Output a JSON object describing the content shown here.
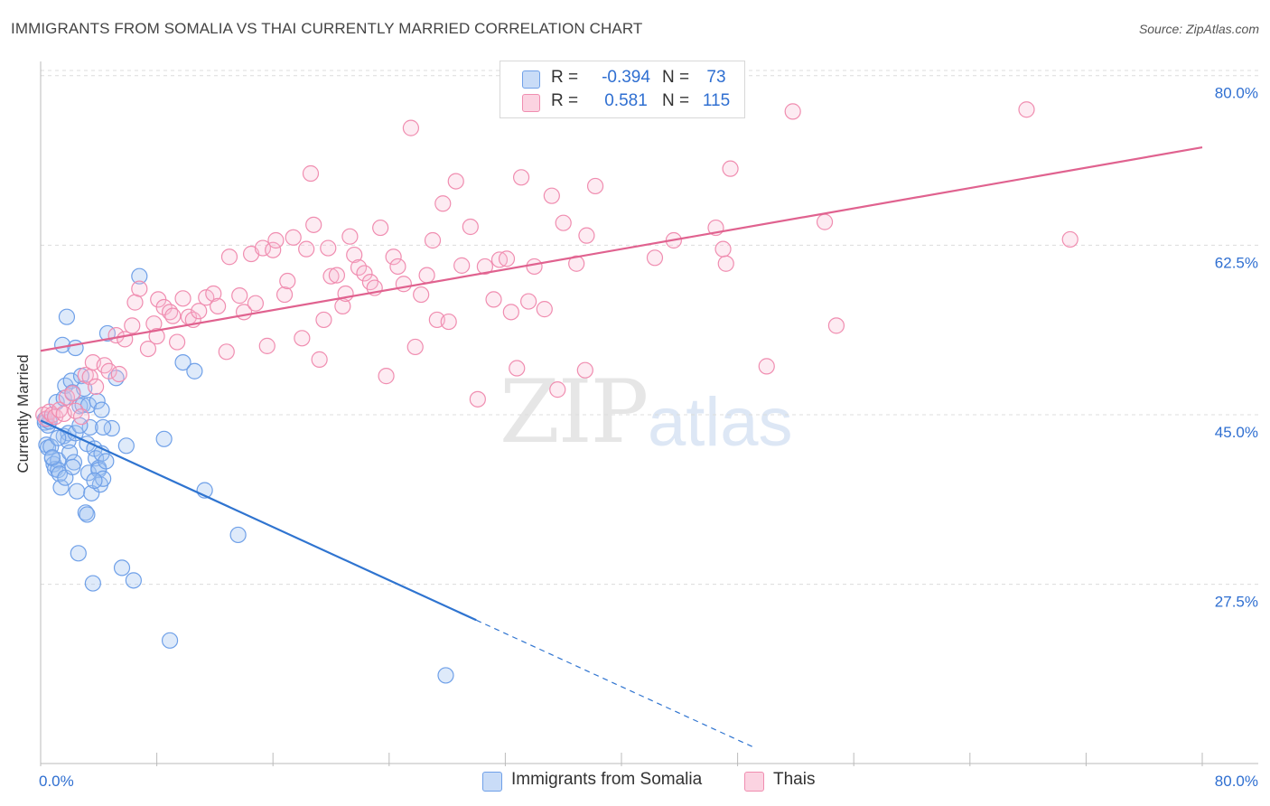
{
  "title": "IMMIGRANTS FROM SOMALIA VS THAI CURRENTLY MARRIED CORRELATION CHART",
  "source": "Source: ZipAtlas.com",
  "watermark": {
    "zip": "ZIP",
    "atlas": "atlas"
  },
  "colors": {
    "blue": "#6fa0e8",
    "blue_line": "#2f74d0",
    "pink": "#f08db0",
    "pink_line": "#e0628f",
    "axis_label": "#2f6fd1"
  },
  "legend": {
    "r_label": "R =",
    "n_label": "N =",
    "rows": [
      {
        "r": "-0.394",
        "n": "73"
      },
      {
        "r": "0.581",
        "n": "115"
      }
    ]
  },
  "bottom_legend": [
    "Immigrants from Somalia",
    "Thais"
  ],
  "chart_data": {
    "type": "scatter",
    "title": "IMMIGRANTS FROM SOMALIA VS THAI CURRENTLY MARRIED CORRELATION CHART",
    "xlabel": "",
    "ylabel": "Currently Married",
    "xlim": [
      0,
      80
    ],
    "ylim": [
      9,
      81
    ],
    "x_tick_labels": [
      "0.0%",
      "80.0%"
    ],
    "y_ticks": [
      27.5,
      45.0,
      62.5,
      80.0
    ],
    "y_tick_labels": [
      "27.5%",
      "45.0%",
      "62.5%",
      "80.0%"
    ],
    "grid": true,
    "series": [
      {
        "name": "Immigrants from Somalia",
        "R": -0.394,
        "N": 73,
        "trend": {
          "x0": 0,
          "y0": 44.4,
          "x1": 30,
          "y1": 23.8,
          "dashed_to_x": 49
        },
        "points": [
          [
            0.3,
            44.5
          ],
          [
            0.3,
            44.2
          ],
          [
            0.4,
            41.9
          ],
          [
            0.5,
            43.9
          ],
          [
            0.5,
            41.6
          ],
          [
            0.6,
            44.3
          ],
          [
            0.7,
            41.7
          ],
          [
            0.8,
            40.5
          ],
          [
            0.9,
            39.9
          ],
          [
            1.0,
            39.4
          ],
          [
            1.1,
            46.3
          ],
          [
            1.2,
            40.3
          ],
          [
            1.2,
            39.3
          ],
          [
            1.3,
            38.9
          ],
          [
            1.4,
            37.5
          ],
          [
            1.5,
            52.2
          ],
          [
            1.6,
            42.8
          ],
          [
            1.6,
            46.7
          ],
          [
            1.7,
            48.0
          ],
          [
            1.7,
            38.5
          ],
          [
            1.8,
            55.1
          ],
          [
            1.9,
            43.1
          ],
          [
            1.9,
            42.3
          ],
          [
            2.0,
            41.1
          ],
          [
            2.1,
            48.5
          ],
          [
            2.2,
            47.3
          ],
          [
            2.3,
            40.1
          ],
          [
            2.4,
            51.9
          ],
          [
            2.4,
            43.1
          ],
          [
            2.5,
            37.1
          ],
          [
            2.6,
            30.7
          ],
          [
            2.7,
            45.9
          ],
          [
            2.8,
            49.0
          ],
          [
            2.9,
            46.0
          ],
          [
            3.0,
            47.7
          ],
          [
            3.1,
            34.9
          ],
          [
            3.2,
            34.7
          ],
          [
            3.2,
            42.0
          ],
          [
            3.3,
            46.0
          ],
          [
            3.3,
            39.0
          ],
          [
            3.4,
            43.7
          ],
          [
            3.5,
            36.9
          ],
          [
            3.6,
            27.6
          ],
          [
            3.7,
            41.5
          ],
          [
            3.8,
            40.5
          ],
          [
            3.9,
            46.4
          ],
          [
            4.0,
            39.5
          ],
          [
            4.0,
            39.3
          ],
          [
            4.1,
            37.8
          ],
          [
            4.2,
            45.5
          ],
          [
            4.2,
            41.0
          ],
          [
            4.3,
            38.4
          ],
          [
            4.5,
            40.2
          ],
          [
            4.6,
            53.4
          ],
          [
            4.9,
            43.6
          ],
          [
            5.2,
            48.8
          ],
          [
            5.6,
            29.2
          ],
          [
            5.9,
            41.8
          ],
          [
            6.4,
            27.9
          ],
          [
            6.8,
            59.3
          ],
          [
            8.5,
            42.5
          ],
          [
            8.9,
            21.7
          ],
          [
            9.8,
            50.4
          ],
          [
            10.6,
            49.5
          ],
          [
            11.3,
            37.2
          ],
          [
            13.6,
            32.6
          ],
          [
            27.9,
            18.1
          ],
          [
            0.8,
            40.6
          ],
          [
            1.2,
            42.6
          ],
          [
            2.2,
            39.6
          ],
          [
            2.7,
            43.9
          ],
          [
            3.7,
            38.2
          ],
          [
            4.3,
            43.7
          ]
        ]
      },
      {
        "name": "Thais",
        "R": 0.581,
        "N": 115,
        "trend": {
          "x0": 0,
          "y0": 51.6,
          "x1": 80,
          "y1": 72.6
        },
        "points": [
          [
            0.2,
            45.0
          ],
          [
            0.4,
            44.6
          ],
          [
            0.6,
            45.3
          ],
          [
            0.8,
            45.0
          ],
          [
            1.0,
            44.8
          ],
          [
            1.3,
            45.5
          ],
          [
            1.6,
            45.1
          ],
          [
            1.8,
            46.8
          ],
          [
            2.2,
            47.2
          ],
          [
            2.4,
            45.4
          ],
          [
            2.8,
            44.8
          ],
          [
            3.1,
            49.1
          ],
          [
            3.4,
            48.9
          ],
          [
            3.6,
            50.4
          ],
          [
            3.8,
            47.9
          ],
          [
            4.4,
            50.1
          ],
          [
            4.7,
            49.5
          ],
          [
            5.2,
            53.2
          ],
          [
            5.4,
            49.2
          ],
          [
            5.8,
            52.8
          ],
          [
            6.3,
            54.2
          ],
          [
            6.5,
            56.6
          ],
          [
            6.8,
            58.0
          ],
          [
            7.4,
            51.8
          ],
          [
            7.8,
            54.4
          ],
          [
            8.0,
            53.1
          ],
          [
            8.1,
            56.9
          ],
          [
            8.5,
            56.1
          ],
          [
            8.9,
            55.6
          ],
          [
            9.1,
            55.2
          ],
          [
            9.4,
            52.5
          ],
          [
            9.8,
            57.0
          ],
          [
            10.2,
            55.1
          ],
          [
            10.5,
            54.8
          ],
          [
            10.9,
            55.7
          ],
          [
            11.4,
            57.1
          ],
          [
            11.9,
            57.5
          ],
          [
            12.2,
            56.2
          ],
          [
            12.8,
            51.5
          ],
          [
            13.0,
            61.3
          ],
          [
            13.7,
            57.3
          ],
          [
            14.0,
            55.6
          ],
          [
            14.5,
            61.6
          ],
          [
            14.8,
            56.5
          ],
          [
            15.3,
            62.2
          ],
          [
            15.6,
            52.1
          ],
          [
            16.0,
            62.0
          ],
          [
            16.2,
            63.0
          ],
          [
            16.8,
            57.4
          ],
          [
            17.0,
            58.8
          ],
          [
            17.4,
            63.3
          ],
          [
            18.0,
            52.9
          ],
          [
            18.3,
            62.1
          ],
          [
            18.6,
            69.9
          ],
          [
            18.8,
            64.6
          ],
          [
            19.2,
            50.7
          ],
          [
            19.5,
            54.8
          ],
          [
            19.8,
            62.2
          ],
          [
            20.0,
            59.3
          ],
          [
            20.4,
            59.4
          ],
          [
            20.8,
            56.2
          ],
          [
            21.0,
            57.5
          ],
          [
            21.3,
            63.4
          ],
          [
            21.6,
            61.5
          ],
          [
            21.9,
            60.2
          ],
          [
            22.3,
            59.6
          ],
          [
            22.7,
            58.7
          ],
          [
            23.0,
            58.1
          ],
          [
            23.4,
            64.3
          ],
          [
            23.8,
            49.0
          ],
          [
            24.3,
            61.3
          ],
          [
            24.6,
            60.3
          ],
          [
            25.0,
            58.5
          ],
          [
            25.5,
            74.6
          ],
          [
            25.8,
            52.0
          ],
          [
            26.2,
            57.4
          ],
          [
            26.6,
            59.4
          ],
          [
            27.0,
            63.0
          ],
          [
            27.3,
            54.8
          ],
          [
            27.7,
            66.8
          ],
          [
            28.1,
            54.6
          ],
          [
            28.6,
            69.1
          ],
          [
            29.0,
            60.4
          ],
          [
            29.6,
            64.4
          ],
          [
            30.1,
            46.6
          ],
          [
            30.6,
            60.3
          ],
          [
            31.2,
            56.9
          ],
          [
            31.6,
            61.0
          ],
          [
            32.1,
            61.1
          ],
          [
            32.4,
            55.6
          ],
          [
            32.8,
            49.8
          ],
          [
            33.1,
            69.5
          ],
          [
            33.6,
            56.7
          ],
          [
            34.0,
            60.3
          ],
          [
            34.7,
            55.9
          ],
          [
            35.2,
            67.6
          ],
          [
            35.6,
            47.6
          ],
          [
            36.0,
            64.8
          ],
          [
            36.9,
            60.6
          ],
          [
            37.6,
            63.5
          ],
          [
            38.2,
            68.6
          ],
          [
            42.3,
            61.2
          ],
          [
            43.6,
            63.0
          ],
          [
            46.5,
            64.3
          ],
          [
            47.0,
            62.1
          ],
          [
            47.2,
            60.6
          ],
          [
            47.5,
            70.4
          ],
          [
            50.0,
            50.0
          ],
          [
            51.8,
            76.3
          ],
          [
            54.0,
            64.9
          ],
          [
            54.8,
            54.2
          ],
          [
            67.9,
            76.5
          ],
          [
            70.9,
            63.1
          ],
          [
            37.5,
            49.6
          ]
        ]
      }
    ]
  }
}
